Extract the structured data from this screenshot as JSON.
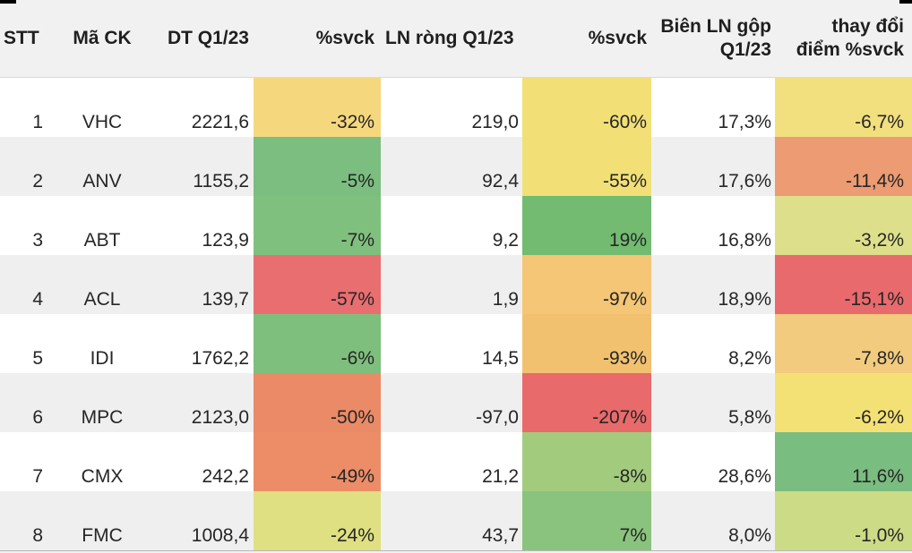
{
  "header": {
    "stt": "STT",
    "ma_ck": "Mã CK",
    "dt": "DT Q1/23",
    "dt_svck": "%svck",
    "ln": "LN ròng Q1/23",
    "ln_svck": "%svck",
    "bien": "Biên LN gộp\nQ1/23",
    "thay_doi": "thay đổi\nđiểm %svck"
  },
  "rows": [
    {
      "stt": "1",
      "ma_ck": "VHC",
      "dt": "2221,6",
      "dt_svck": "-32%",
      "dt_svck_bg": "#F5D87D",
      "ln": "219,0",
      "ln_svck": "-60%",
      "ln_svck_bg": "#F2E077",
      "bien": "17,3%",
      "thay_doi": "-6,7%",
      "thay_doi_bg": "#F2E07E"
    },
    {
      "stt": "2",
      "ma_ck": "ANV",
      "dt": "1155,2",
      "dt_svck": "-5%",
      "dt_svck_bg": "#7BBE80",
      "ln": "92,4",
      "ln_svck": "-55%",
      "ln_svck_bg": "#F2E077",
      "bien": "17,6%",
      "thay_doi": "-11,4%",
      "thay_doi_bg": "#EC9B72"
    },
    {
      "stt": "3",
      "ma_ck": "ABT",
      "dt": "123,9",
      "dt_svck": "-7%",
      "dt_svck_bg": "#80C07E",
      "ln": "9,2",
      "ln_svck": "19%",
      "ln_svck_bg": "#72BB71",
      "bien": "16,8%",
      "thay_doi": "-3,2%",
      "thay_doi_bg": "#DEDF8A"
    },
    {
      "stt": "4",
      "ma_ck": "ACL",
      "dt": "139,7",
      "dt_svck": "-57%",
      "dt_svck_bg": "#E96E70",
      "ln": "1,9",
      "ln_svck": "-97%",
      "ln_svck_bg": "#F4C675",
      "bien": "18,9%",
      "thay_doi": "-15,1%",
      "thay_doi_bg": "#E96A6D"
    },
    {
      "stt": "5",
      "ma_ck": "IDI",
      "dt": "1762,2",
      "dt_svck": "-6%",
      "dt_svck_bg": "#7EBF7D",
      "ln": "14,5",
      "ln_svck": "-93%",
      "ln_svck_bg": "#F2C170",
      "bien": "8,2%",
      "thay_doi": "-7,8%",
      "thay_doi_bg": "#F2CB7E"
    },
    {
      "stt": "6",
      "ma_ck": "MPC",
      "dt": "2123,0",
      "dt_svck": "-50%",
      "dt_svck_bg": "#EB8A67",
      "ln": "-97,0",
      "ln_svck": "-207%",
      "ln_svck_bg": "#E96A6A",
      "bien": "5,8%",
      "thay_doi": "-6,2%",
      "thay_doi_bg": "#F4E175"
    },
    {
      "stt": "7",
      "ma_ck": "CMX",
      "dt": "242,2",
      "dt_svck": "-49%",
      "dt_svck_bg": "#EC8D68",
      "ln": "21,2",
      "ln_svck": "-8%",
      "ln_svck_bg": "#A3CB7E",
      "bien": "28,6%",
      "thay_doi": "11,6%",
      "thay_doi_bg": "#7ABD80"
    },
    {
      "stt": "8",
      "ma_ck": "FMC",
      "dt": "1008,4",
      "dt_svck": "-24%",
      "dt_svck_bg": "#DFE081",
      "ln": "43,7",
      "ln_svck": "7%",
      "ln_svck_bg": "#8AC37D",
      "bien": "8,0%",
      "thay_doi": "-1,0%",
      "thay_doi_bg": "#CCDB85"
    }
  ],
  "colors": {
    "header_bg": "#f1f1f1",
    "row_bg": "#ffffff",
    "row_alt_bg": "#efefef",
    "text": "#262626",
    "header_text": "#1f1f1f",
    "top_accent": "#000000",
    "bottom_border": "#b7b7b7"
  },
  "chart_data": {
    "type": "table",
    "title": "",
    "columns": [
      "STT",
      "Mã CK",
      "DT Q1/23",
      "%svck",
      "LN ròng Q1/23",
      "%svck",
      "Biên LN gộp Q1/23",
      "thay đổi điểm %svck"
    ],
    "rows": [
      [
        "1",
        "VHC",
        "2221,6",
        "-32%",
        "219,0",
        "-60%",
        "17,3%",
        "-6,7%"
      ],
      [
        "2",
        "ANV",
        "1155,2",
        "-5%",
        "92,4",
        "-55%",
        "17,6%",
        "-11,4%"
      ],
      [
        "3",
        "ABT",
        "123,9",
        "-7%",
        "9,2",
        "19%",
        "16,8%",
        "-3,2%"
      ],
      [
        "4",
        "ACL",
        "139,7",
        "-57%",
        "1,9",
        "-97%",
        "18,9%",
        "-15,1%"
      ],
      [
        "5",
        "IDI",
        "1762,2",
        "-6%",
        "14,5",
        "-93%",
        "8,2%",
        "-7,8%"
      ],
      [
        "6",
        "MPC",
        "2123,0",
        "-50%",
        "-97,0",
        "-207%",
        "5,8%",
        "-6,2%"
      ],
      [
        "7",
        "CMX",
        "242,2",
        "-49%",
        "21,2",
        "-8%",
        "28,6%",
        "11,6%"
      ],
      [
        "8",
        "FMC",
        "1008,4",
        "-24%",
        "43,7",
        "7%",
        "8,0%",
        "-1,0%"
      ]
    ],
    "conditional_formatting": {
      "scale": "red-yellow-green",
      "applied_columns": [
        "%svck (DT)",
        "%svck (LN ròng)",
        "thay đổi điểm %svck"
      ]
    }
  }
}
